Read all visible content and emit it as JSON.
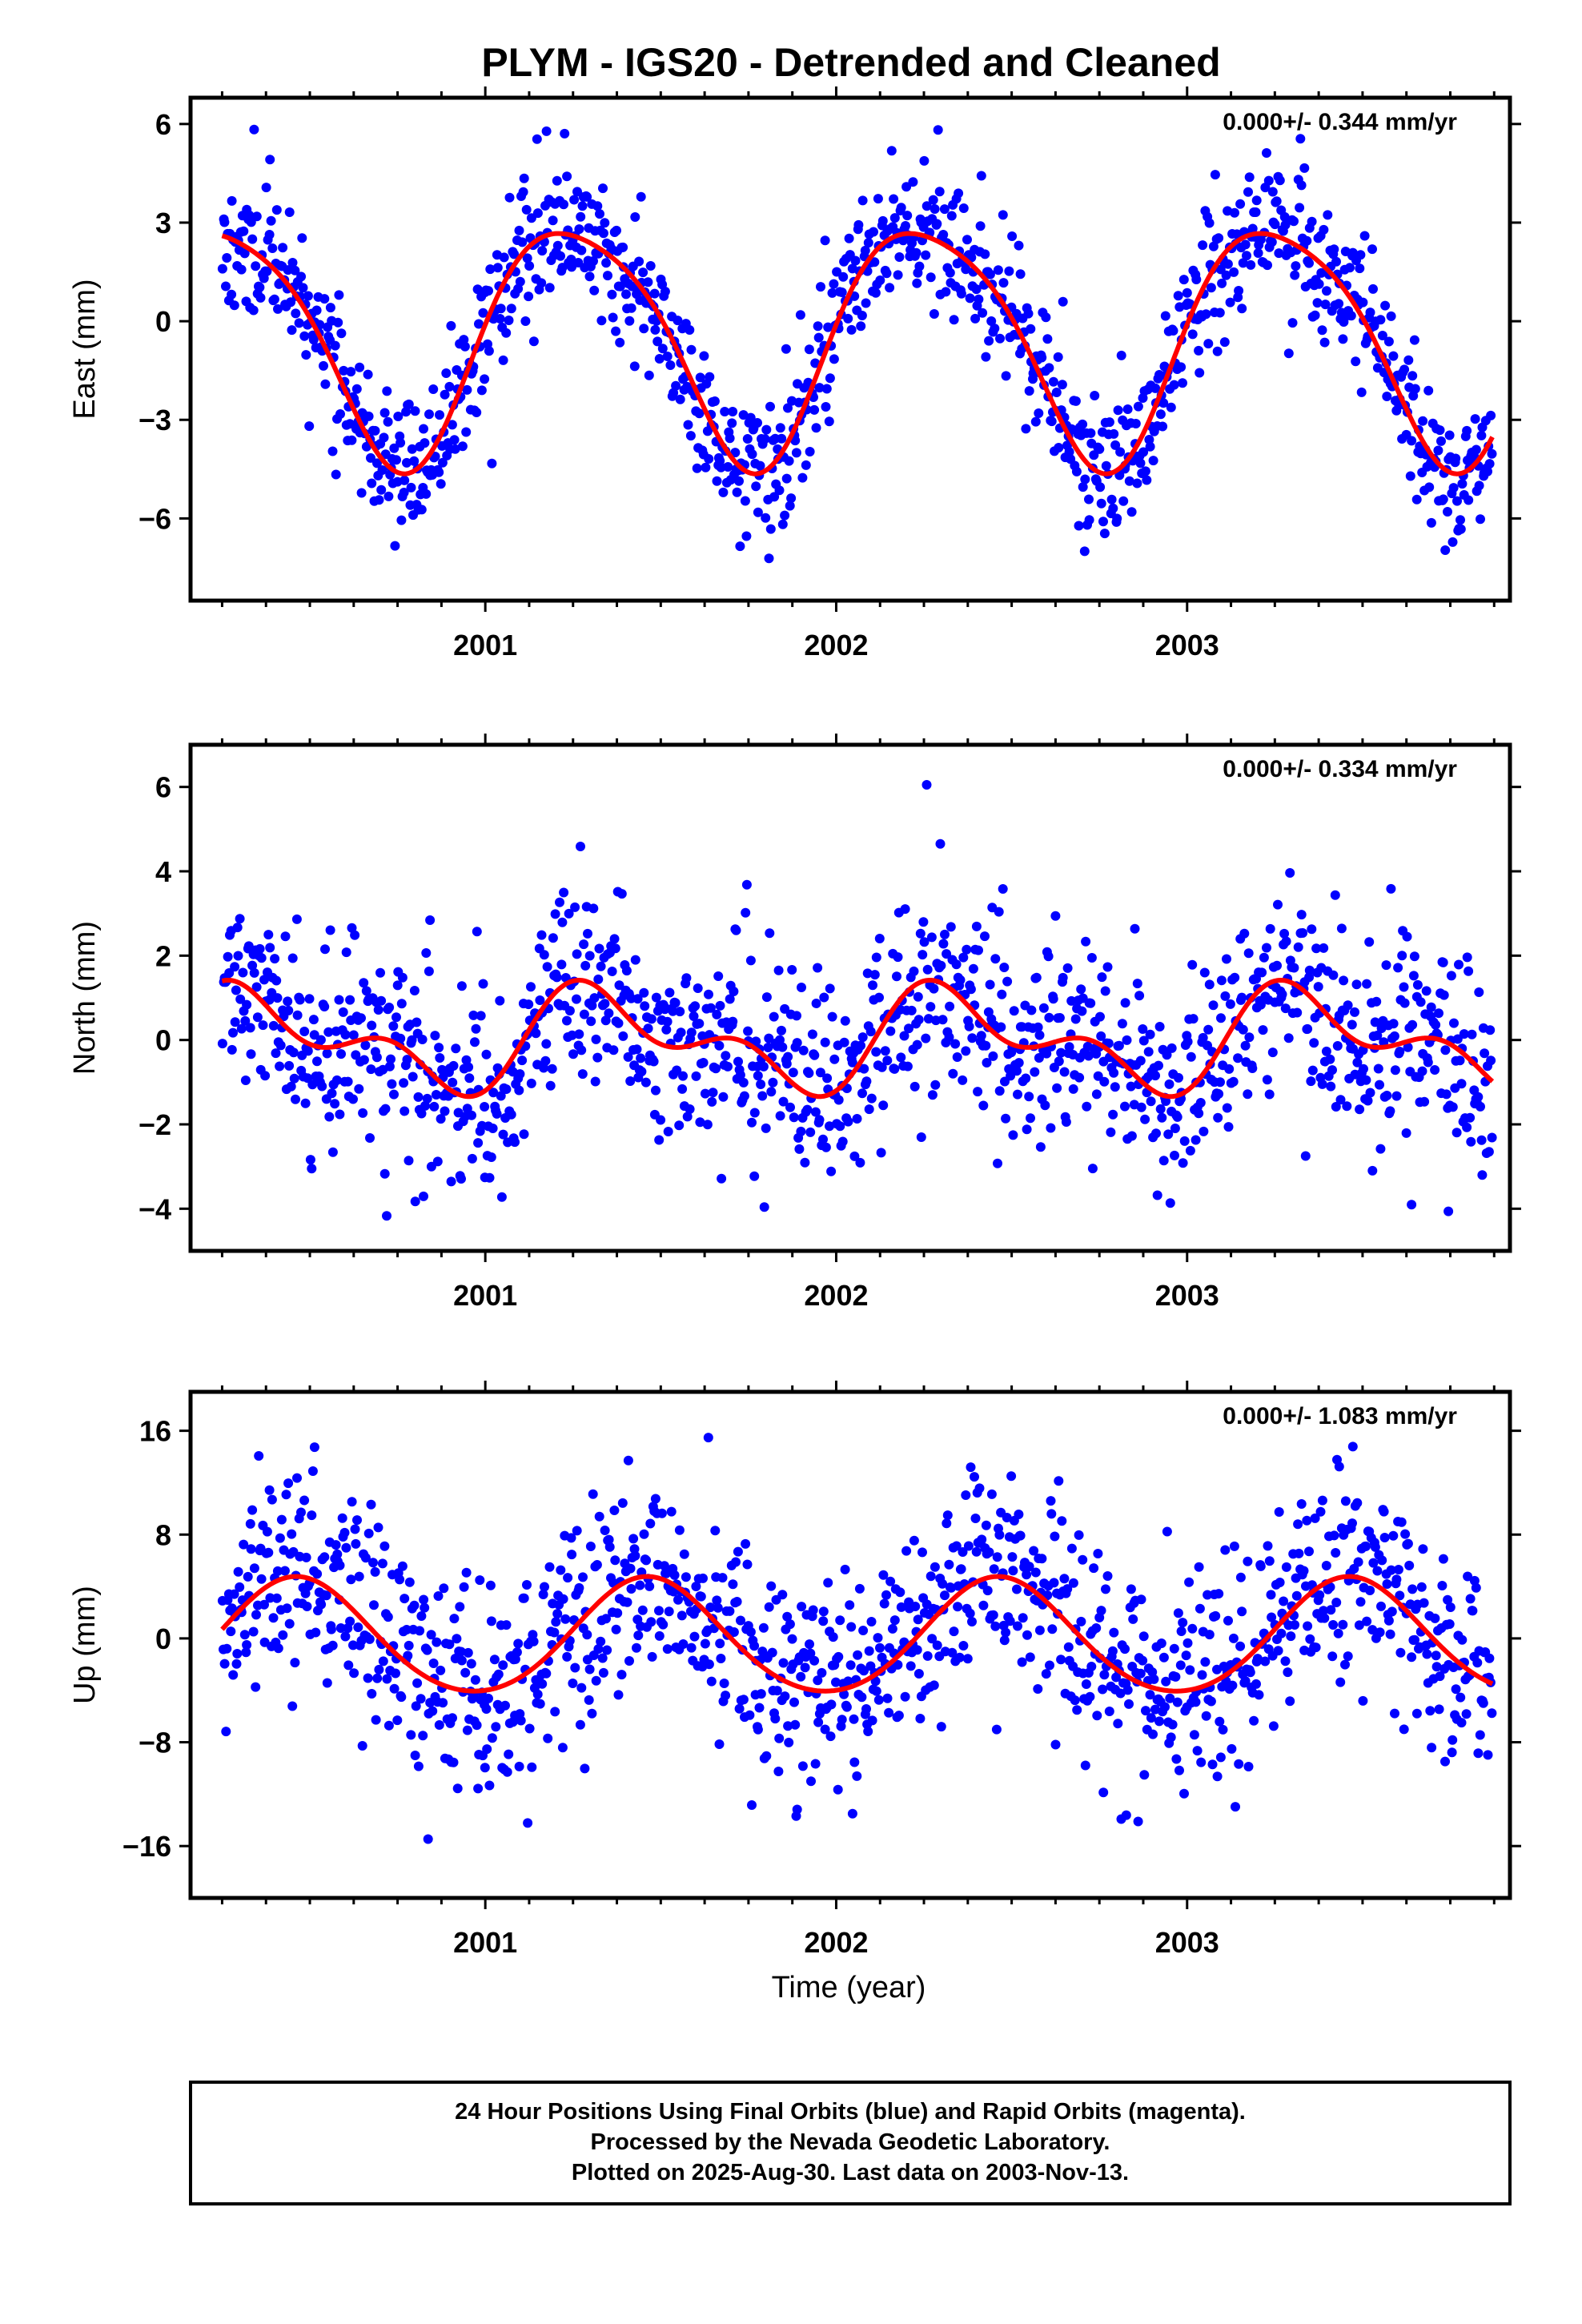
{
  "title": "PLYM - IGS20 - Detrended and Cleaned",
  "xlabel": "Time (year)",
  "footer": [
    "24 Hour Positions Using Final Orbits (blue) and Rapid Orbits (magenta).",
    "Processed by the Nevada Geodetic Laboratory.",
    "Plotted on 2025-Aug-30. Last data on 2003-Nov-13."
  ],
  "colors": {
    "points": "#0000ff",
    "model": "#ff0000",
    "frame": "#000000"
  },
  "chart_data": [
    {
      "type": "scatter",
      "component": "east",
      "ylabel": "East (mm)",
      "rate_text": "0.000+/- 0.344 mm/yr",
      "xlim": [
        2000.16,
        2003.92
      ],
      "ylim": [
        -8.5,
        6.8
      ],
      "xticks": [
        2001,
        2002,
        2003
      ],
      "yticks": [
        6,
        3,
        0,
        -3,
        -6
      ],
      "ytick_labels": [
        "6",
        "3",
        "0",
        "−3",
        "−6"
      ],
      "data_start": 2000.25,
      "data_end": 2003.87,
      "model": {
        "offset": -0.5,
        "annual_cos": -0.1,
        "annual_sin": 3.6,
        "semi_cos": 0.5,
        "semi_sin": 0.3
      },
      "scatter_sigma": 1.05,
      "n_points": 1200,
      "seed": 11
    },
    {
      "type": "scatter",
      "component": "north",
      "ylabel": "North (mm)",
      "rate_text": "0.000+/- 0.334 mm/yr",
      "xlim": [
        2000.16,
        2003.92
      ],
      "ylim": [
        -5.0,
        7.0
      ],
      "xticks": [
        2001,
        2002,
        2003
      ],
      "yticks": [
        6,
        4,
        2,
        0,
        -2,
        -4
      ],
      "ytick_labels": [
        "6",
        "4",
        "2",
        "0",
        "−2",
        "−4"
      ],
      "data_start": 2000.25,
      "data_end": 2003.87,
      "model": {
        "offset": 0.0,
        "annual_cos": -0.55,
        "annual_sin": 0.75,
        "semi_cos": -0.65,
        "semi_sin": 0.1
      },
      "scatter_sigma": 1.15,
      "n_points": 1200,
      "seed": 23
    },
    {
      "type": "scatter",
      "component": "up",
      "ylabel": "Up (mm)",
      "rate_text": "0.000+/- 1.083 mm/yr",
      "xlim": [
        2000.16,
        2003.92
      ],
      "ylim": [
        -20,
        19
      ],
      "xticks": [
        2001,
        2002,
        2003
      ],
      "yticks": [
        16,
        8,
        0,
        -8,
        -16
      ],
      "ytick_labels": [
        "16",
        "8",
        "0",
        "−8",
        "−16"
      ],
      "data_start": 2000.25,
      "data_end": 2003.87,
      "model": {
        "offset": 0.0,
        "annual_cos": -4.3,
        "annual_sin": 1.0,
        "semi_cos": 0.3,
        "semi_sin": -0.2
      },
      "scatter_sigma": 4.0,
      "n_points": 1200,
      "seed": 37
    }
  ]
}
